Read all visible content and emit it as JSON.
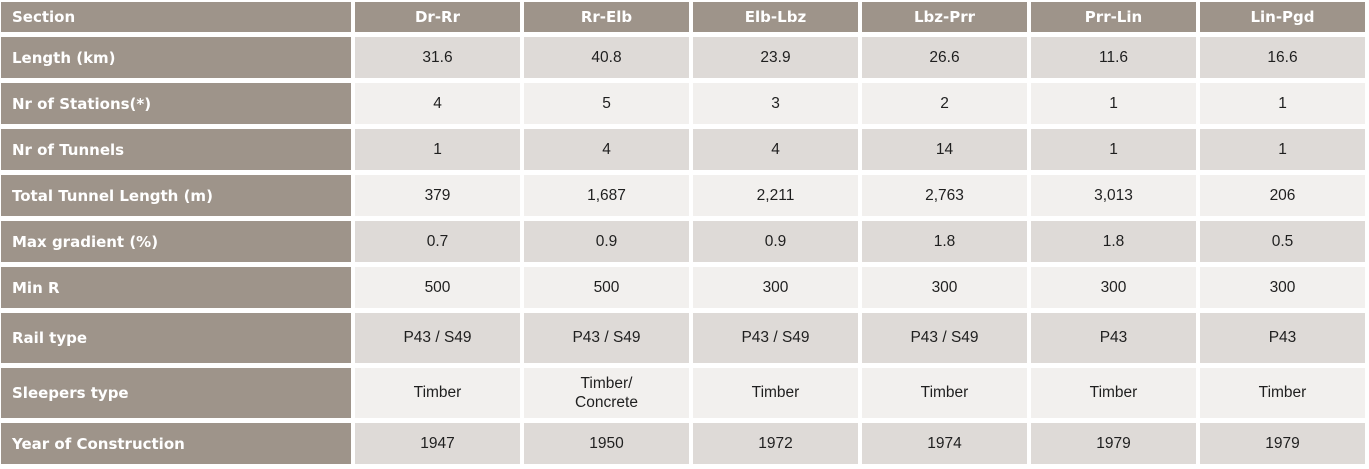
{
  "colors": {
    "header_bg": "#9e948a",
    "row_dark": "#dedad7",
    "row_light": "#f2f0ee",
    "header_text": "#ffffff",
    "cell_text": "#1f1f1f",
    "gap": "#ffffff"
  },
  "table": {
    "header": {
      "section_label": "Section",
      "columns": [
        "Dr-Rr",
        "Rr-Elb",
        "Elb-Lbz",
        "Lbz-Prr",
        "Prr-Lin",
        "Lin-Pgd"
      ]
    },
    "rows": [
      {
        "label": "Length (km)",
        "values": [
          "31.6",
          "40.8",
          "23.9",
          "26.6",
          "11.6",
          "16.6"
        ]
      },
      {
        "label": "Nr of Stations(*)",
        "values": [
          "4",
          "5",
          "3",
          "2",
          "1",
          "1"
        ]
      },
      {
        "label": "Nr of Tunnels",
        "values": [
          "1",
          "4",
          "4",
          "14",
          "1",
          "1"
        ]
      },
      {
        "label": "Total Tunnel Length (m)",
        "values": [
          "379",
          "1,687",
          "2,211",
          "2,763",
          "3,013",
          "206"
        ]
      },
      {
        "label": "Max gradient (%)",
        "values": [
          "0.7",
          "0.9",
          "0.9",
          "1.8",
          "1.8",
          "0.5"
        ]
      },
      {
        "label": "Min R",
        "values": [
          "500",
          "500",
          "300",
          "300",
          "300",
          "300"
        ]
      },
      {
        "label": "Rail type",
        "values": [
          "P43 / S49",
          "P43 / S49",
          "P43 / S49",
          "P43 / S49",
          "P43",
          "P43"
        ]
      },
      {
        "label": "Sleepers type",
        "values": [
          "Timber",
          "Timber/\nConcrete",
          "Timber",
          "Timber",
          "Timber",
          "Timber"
        ]
      },
      {
        "label": "Year of Construction",
        "values": [
          "1947",
          "1950",
          "1972",
          "1974",
          "1979",
          "1979"
        ]
      }
    ]
  }
}
